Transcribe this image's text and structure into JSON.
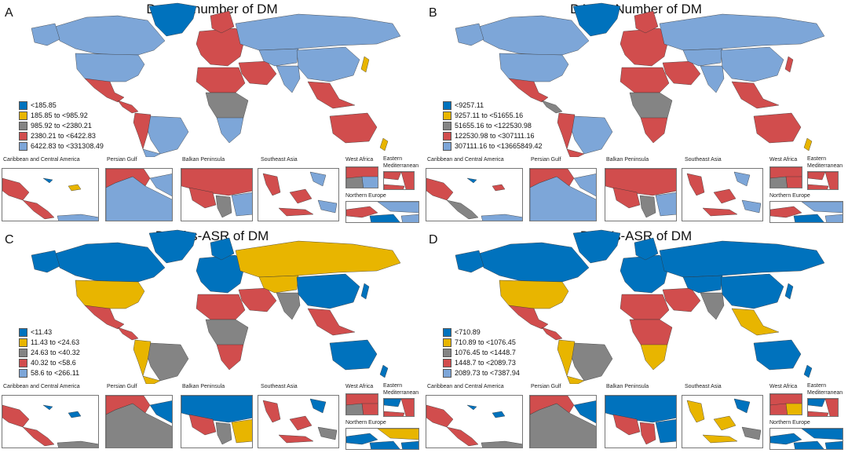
{
  "colors": {
    "c1": "#0072BD",
    "c2": "#E8B500",
    "c3": "#848484",
    "c4": "#D14D4D",
    "c5": "#7DA6D8"
  },
  "inset_labels": {
    "caribbean": "Caribbean and Central America",
    "persian_gulf": "Persian Gulf",
    "balkan": "Balkan Peninsula",
    "southeast_asia": "Southeast Asia",
    "west_africa": "West Africa",
    "eastern_med": "Eastern Mediterranean",
    "northern_europe": "Northern Europe"
  },
  "panels": [
    {
      "letter": "A",
      "title": "Deaths-number of DM",
      "legend": [
        "<185.85",
        "185.85 to <985.92",
        "985.92 to <2380.21",
        "2380.21 to <6422.83",
        "6422.83 to <331308.49"
      ],
      "base_class": "c5",
      "region_classes": {
        "greenland": "c1",
        "canada": "c5",
        "usa": "c5",
        "mexico": "c4",
        "central_am": "c4",
        "brazil": "c5",
        "andes": "c4",
        "argentina": "c5",
        "europe": "c4",
        "russia": "c5",
        "middle_east": "c4",
        "africa_n": "c4",
        "africa_c": "c3",
        "africa_s": "c5",
        "india": "c5",
        "china": "c5",
        "se_asia": "c4",
        "australia": "c4",
        "japan": "c2",
        "nz": "c2"
      }
    },
    {
      "letter": "B",
      "title": "DALYs-Number of DM",
      "legend": [
        "<9257.11",
        "9257.11 to <51655.16",
        "51655.16 to <122530.98",
        "122530.98 to <307111.16",
        "307111.16 to <13665849.42"
      ],
      "base_class": "c5",
      "region_classes": {
        "greenland": "c1",
        "canada": "c5",
        "usa": "c5",
        "mexico": "c4",
        "central_am": "c3",
        "brazil": "c5",
        "andes": "c4",
        "argentina": "c4",
        "europe": "c4",
        "russia": "c5",
        "middle_east": "c4",
        "africa_n": "c4",
        "africa_c": "c3",
        "africa_s": "c4",
        "india": "c5",
        "china": "c5",
        "se_asia": "c4",
        "australia": "c4",
        "japan": "c4",
        "nz": "c2"
      }
    },
    {
      "letter": "C",
      "title": "Deaths-ASR of DM",
      "legend": [
        "<11.43",
        "11.43 to <24.63",
        "24.63 to <40.32",
        "40.32 to <58.6",
        "58.6 to <266.11"
      ],
      "base_class": "c1",
      "region_classes": {
        "greenland": "c1",
        "canada": "c1",
        "usa": "c2",
        "mexico": "c4",
        "central_am": "c4",
        "brazil": "c3",
        "andes": "c2",
        "argentina": "c2",
        "europe": "c1",
        "russia": "c2",
        "middle_east": "c4",
        "africa_n": "c4",
        "africa_c": "c3",
        "africa_s": "c4",
        "india": "c3",
        "china": "c1",
        "se_asia": "c4",
        "australia": "c1",
        "japan": "c1",
        "nz": "c1"
      }
    },
    {
      "letter": "D",
      "title": "DALYs-ASR of DM",
      "legend": [
        "<710.89",
        "710.89 to <1076.45",
        "1076.45 to <1448.7",
        "1448.7 to <2089.73",
        "2089.73 to <7387.94"
      ],
      "base_class": "c1",
      "region_classes": {
        "greenland": "c1",
        "canada": "c1",
        "usa": "c2",
        "mexico": "c4",
        "central_am": "c4",
        "brazil": "c3",
        "andes": "c2",
        "argentina": "c2",
        "europe": "c1",
        "russia": "c1",
        "middle_east": "c4",
        "africa_n": "c4",
        "africa_c": "c4",
        "africa_s": "c2",
        "india": "c3",
        "china": "c1",
        "se_asia": "c2",
        "australia": "c1",
        "japan": "c1",
        "nz": "c1"
      }
    }
  ]
}
